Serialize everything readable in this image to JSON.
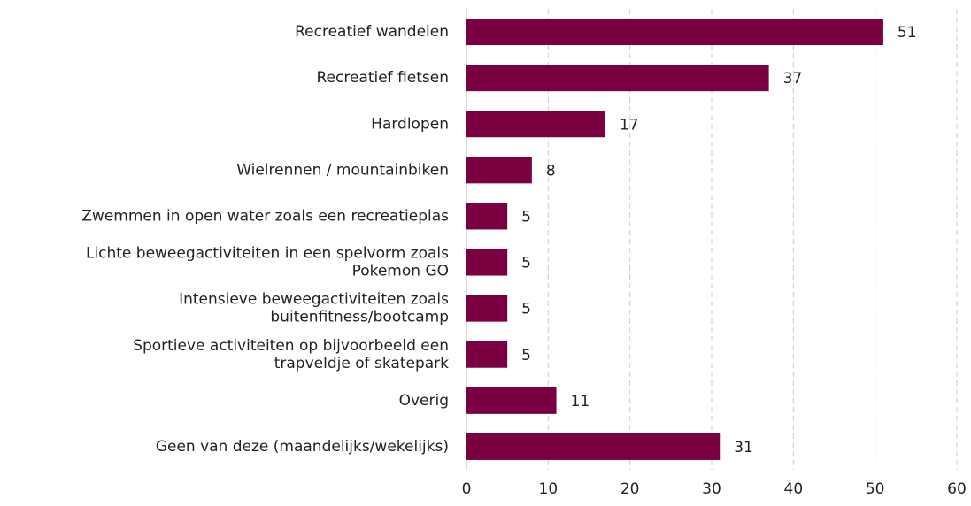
{
  "chart_data": {
    "type": "barh",
    "categories": [
      "Recreatief wandelen",
      "Recreatief fietsen",
      "Hardlopen",
      "Wielrennen / mountainbiken",
      "Zwemmen in open water zoals een recreatieplas",
      "Lichte beweegactiviteiten in een spelvorm zoals\nPokemon GO",
      "Intensieve beweegactiviteiten zoals\nbuitenfitness/bootcamp",
      "Sportieve activiteiten op bijvoorbeeld een\ntrapveldje of skatepark",
      "Overig",
      "Geen van deze (maandelijks/wekelijks)"
    ],
    "values": [
      51,
      37,
      17,
      8,
      5,
      5,
      5,
      5,
      11,
      31
    ],
    "color": "#7b0041",
    "xlim": [
      0,
      60
    ],
    "xticks": [
      0,
      10,
      20,
      30,
      40,
      50,
      60
    ],
    "grid": true
  }
}
